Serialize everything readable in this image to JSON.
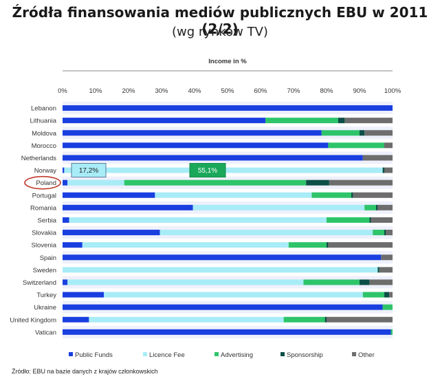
{
  "slide": {
    "title": "Źródła finansowania mediów publicznych EBU w 2011  (2/2)",
    "subtitle": "(wg rynków TV)",
    "source": "Źródło: EBU na bazie danych z krajów członkowskich"
  },
  "chart_data": {
    "type": "bar",
    "orientation": "horizontal",
    "stacked": true,
    "title": "Income in %",
    "xlim": [
      0,
      100
    ],
    "xticks": [
      "0%",
      "10%",
      "20%",
      "30%",
      "40%",
      "50%",
      "60%",
      "70%",
      "80%",
      "90%",
      "100%"
    ],
    "categories": [
      "Lebanon",
      "Lithuania",
      "Moldova",
      "Morocco",
      "Netherlands",
      "Norway",
      "Poland",
      "Portugal",
      "Romania",
      "Serbia",
      "Slovakia",
      "Slovenia",
      "Spain",
      "Sweden",
      "Switzerland",
      "Turkey",
      "Ukraine",
      "United Kingdom",
      "Vatican"
    ],
    "highlighted_category": "Poland",
    "legend_position": "bottom",
    "series": [
      {
        "name": "Public Funds",
        "color": "#1a3fe0",
        "values": [
          100,
          61.5,
          78.5,
          80.5,
          91,
          0.5,
          1.5,
          28,
          39.5,
          2,
          29.5,
          6,
          96.5,
          0,
          1.5,
          12.5,
          97,
          8,
          99.5
        ]
      },
      {
        "name": "Licence Fee",
        "color": "#a8ecf7",
        "values": [
          0,
          0,
          0,
          0,
          0,
          96.5,
          17.2,
          47.5,
          52,
          78,
          64.5,
          62.5,
          0,
          95.5,
          71.5,
          78.5,
          0,
          59,
          0
        ]
      },
      {
        "name": "Advertising",
        "color": "#2ec46a",
        "values": [
          0,
          22,
          11.5,
          17,
          0,
          0,
          55.1,
          12,
          3.5,
          13,
          3.5,
          11.5,
          0,
          0,
          17,
          6.5,
          3,
          12.5,
          0.5
        ]
      },
      {
        "name": "Sponsorship",
        "color": "#0c4f47",
        "values": [
          0,
          2,
          1.5,
          0,
          0,
          0.5,
          7,
          0.5,
          0.5,
          0.5,
          0.5,
          0.5,
          0,
          0.5,
          3,
          1.5,
          0,
          0.5,
          0
        ]
      },
      {
        "name": "Other",
        "color": "#6d6d6d",
        "values": [
          0,
          14.5,
          8.5,
          2.5,
          9,
          2.5,
          19.2,
          12,
          4.5,
          6.5,
          2,
          19.5,
          3.5,
          4,
          7,
          1,
          0,
          20,
          0
        ]
      }
    ],
    "annotations": [
      {
        "category": "Norway",
        "text": "17,2%",
        "refers_to": "Poland Licence Fee"
      },
      {
        "category": "Norway",
        "text": "55,1%",
        "refers_to": "Poland Advertising"
      }
    ]
  }
}
